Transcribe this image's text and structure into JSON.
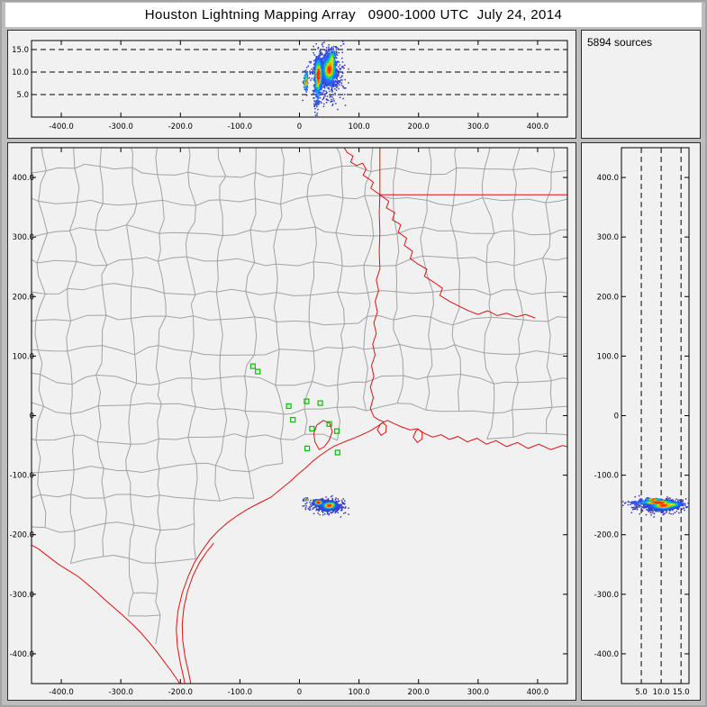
{
  "title": "Houston Lightning Mapping Array   0900-1000 UTC  July 24, 2014",
  "sources_label": "5894 sources",
  "colors": {
    "window_background": "#bdbdbd",
    "panel_background": "#f1f1f1",
    "county_line": "#a2a2a2",
    "state_border": "#dd1111",
    "station_marker": "#00c000",
    "axis": "#000000",
    "density_palette": [
      "#3535bd",
      "#2266ff",
      "#00bbff",
      "#00dd44",
      "#e8e800",
      "#ff8800",
      "#ff2200"
    ]
  },
  "chart_data": [
    {
      "type": "scatter",
      "name": "altitude-vs-east-west",
      "description": "lightning source altitude (km) vs east-west distance (km), density colored",
      "x": {
        "lim": [
          -450,
          450
        ],
        "tick_values": [
          -400,
          -300,
          -200,
          -100,
          0,
          100,
          200,
          300,
          400
        ],
        "tick_labels": [
          "-400.0",
          "-300.0",
          "-200.0",
          "-100.0",
          "0",
          "100.0",
          "200.0",
          "300.0",
          "400.0"
        ]
      },
      "y": {
        "lim": [
          0,
          17
        ],
        "gridline_values": [
          5,
          10,
          15
        ],
        "gridline_labels": [
          "5.0",
          "10.0",
          "15.0"
        ],
        "grid_style": "dashed"
      }
    },
    {
      "type": "scatter",
      "name": "plan-view-map",
      "description": "plan view of lightning sources over Texas/Louisiana county map, Houston LMA centered at origin",
      "x": {
        "lim": [
          -450,
          450
        ],
        "tick_values": [
          -400,
          -300,
          -200,
          -100,
          0,
          100,
          200,
          300,
          400
        ],
        "tick_labels": [
          "-400.0",
          "-300.0",
          "-200.0",
          "-100.0",
          "0",
          "100.0",
          "200.0",
          "300.0",
          "400.0"
        ]
      },
      "y": {
        "lim": [
          -450,
          450
        ],
        "tick_values": [
          400,
          300,
          200,
          100,
          0,
          -100,
          -200,
          -300,
          -400
        ],
        "tick_labels": [
          "400.0",
          "300.0",
          "200.0",
          "100.0",
          "0",
          "-100.0",
          "-200.0",
          "-300.0",
          "-400.0"
        ]
      },
      "total_sources": 5894,
      "stations_km": [
        [
          -78,
          83
        ],
        [
          -70,
          74
        ],
        [
          -18,
          16
        ],
        [
          -11,
          -7
        ],
        [
          12,
          24
        ],
        [
          21,
          -22
        ],
        [
          35,
          21
        ],
        [
          13,
          -55
        ],
        [
          50,
          -14
        ],
        [
          63,
          -26
        ],
        [
          64,
          -62
        ]
      ],
      "lightning_clusters": [
        {
          "center": [
            50,
            -151,
            10.5
          ],
          "sigma": [
            6,
            3,
            1.6
          ],
          "count": 2650
        },
        {
          "center": [
            32,
            -146,
            9.5
          ],
          "sigma": [
            3.5,
            2,
            2.0
          ],
          "count": 1350
        },
        {
          "center": [
            48,
            -152,
            9.5
          ],
          "sigma": [
            14,
            6,
            3.2
          ],
          "count": 1000
        },
        {
          "center": [
            55,
            -149,
            13.2
          ],
          "sigma": [
            3,
            2,
            1.2
          ],
          "count": 400
        },
        {
          "center": [
            30,
            -146,
            6.0
          ],
          "sigma": [
            2.5,
            1.5,
            2.5
          ],
          "count": 294
        },
        {
          "center": [
            11,
            -141,
            8.0
          ],
          "sigma": [
            1.8,
            1.0,
            1.2
          ],
          "count": 200
        }
      ]
    },
    {
      "type": "scatter",
      "name": "altitude-vs-north-south",
      "description": "lightning source altitude (km) vs north-south distance (km), density colored",
      "x": {
        "lim": [
          0,
          17
        ],
        "gridline_values": [
          5,
          10,
          15
        ],
        "gridline_labels": [
          "5.0",
          "10.0",
          "15.0"
        ],
        "grid_style": "dashed"
      },
      "y": {
        "lim": [
          -450,
          450
        ],
        "tick_values": [
          400,
          300,
          200,
          100,
          0,
          -100,
          -200,
          -300,
          -400
        ],
        "tick_labels": [
          "400.0",
          "300.0",
          "200.0",
          "100.0",
          "0",
          "-100.0",
          "-200.0",
          "-300.0",
          "-400.0"
        ]
      }
    }
  ]
}
